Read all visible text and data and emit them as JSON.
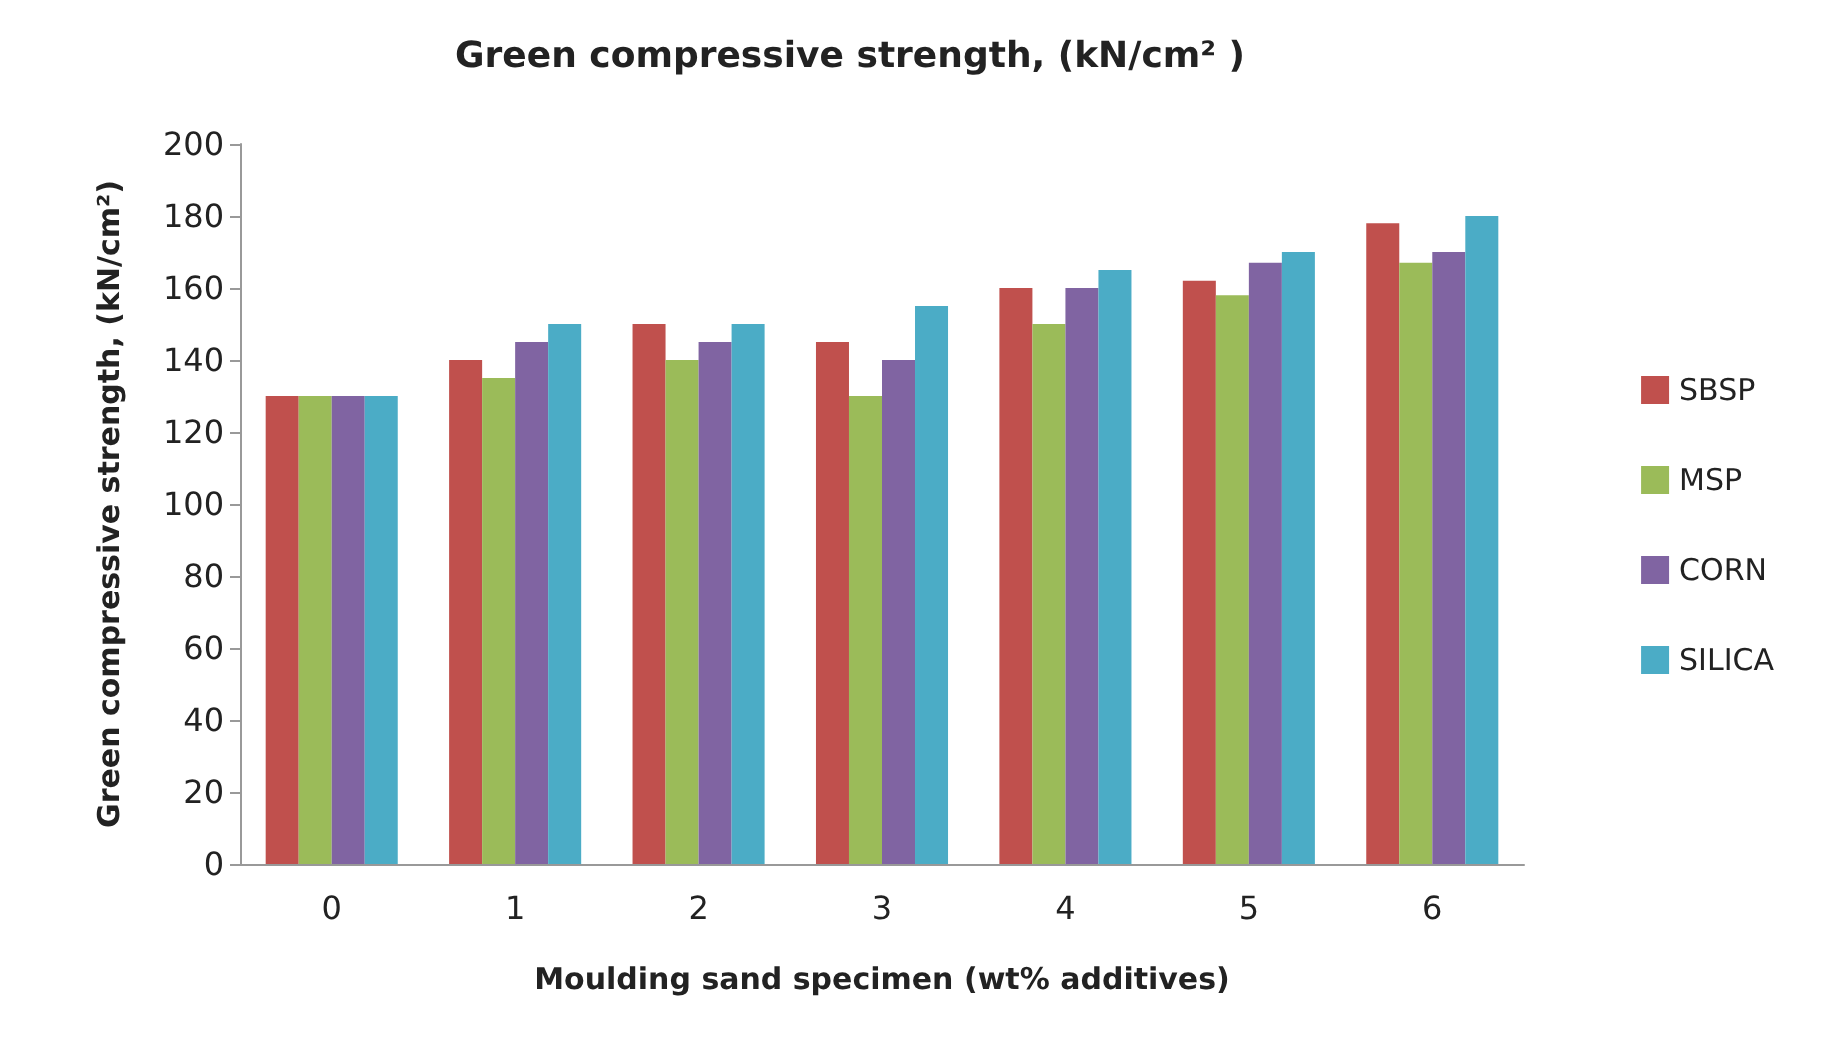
{
  "chart_data": {
    "type": "bar",
    "title": "Green compressive strength, (kN/cm² )",
    "xlabel": "Moulding sand specimen (wt% additives)",
    "ylabel": "Green compressive strength, (kN/cm²)",
    "categories": [
      "0",
      "1",
      "2",
      "3",
      "4",
      "5",
      "6"
    ],
    "series": [
      {
        "name": "SBSP",
        "color": "#c0504d",
        "values": [
          130,
          140,
          150,
          145,
          160,
          162,
          178
        ]
      },
      {
        "name": "MSP",
        "color": "#9bbb59",
        "values": [
          130,
          135,
          140,
          130,
          150,
          158,
          167
        ]
      },
      {
        "name": "CORN",
        "color": "#8064a2",
        "values": [
          130,
          145,
          145,
          140,
          160,
          167,
          170
        ]
      },
      {
        "name": "SILICA",
        "color": "#4bacc6",
        "values": [
          130,
          150,
          150,
          155,
          165,
          170,
          180
        ]
      }
    ],
    "ylim": [
      0,
      200
    ],
    "yticks": [
      0,
      20,
      40,
      60,
      80,
      100,
      120,
      140,
      160,
      180,
      200
    ],
    "grid": false,
    "legend": "right"
  }
}
